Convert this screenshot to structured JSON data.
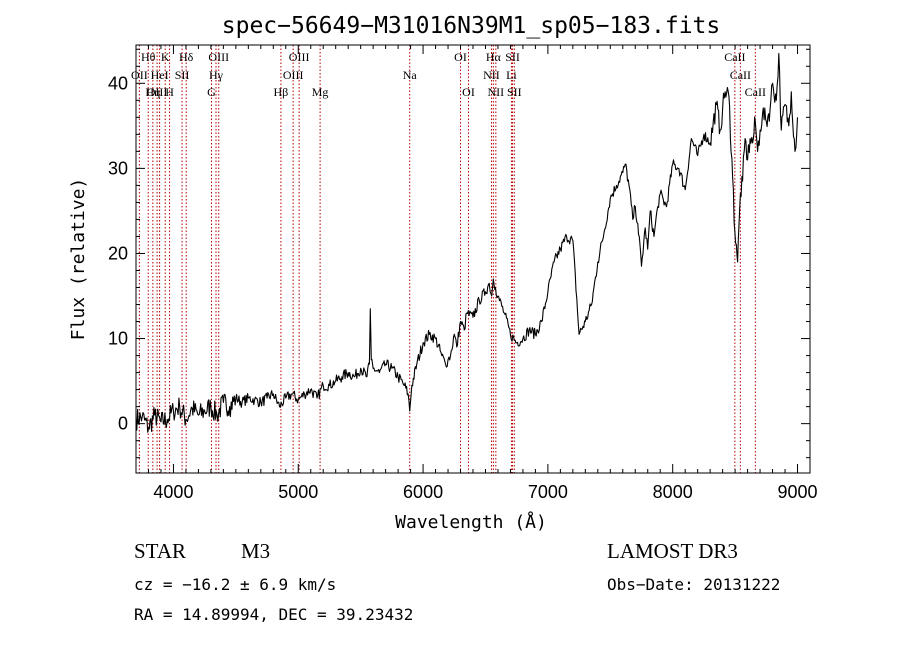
{
  "chart_data": {
    "type": "line",
    "title": "spec−56649−M31016N39M1_sp05−183.fits",
    "xlabel": "Wavelength (Å)",
    "ylabel": "Flux (relative)",
    "xlim": [
      3700,
      9100
    ],
    "ylim": [
      -5.8,
      44.5
    ],
    "xticks": [
      4000,
      5000,
      6000,
      7000,
      8000,
      9000
    ],
    "yticks": [
      0,
      10,
      20,
      30,
      40
    ],
    "line_color": "#000000",
    "marker_color": "#b40000",
    "spectrum": {
      "x": [
        3700,
        3750,
        3800,
        3850,
        3900,
        3950,
        4000,
        4050,
        4100,
        4150,
        4200,
        4250,
        4300,
        4350,
        4400,
        4450,
        4500,
        4550,
        4600,
        4650,
        4700,
        4750,
        4800,
        4850,
        4900,
        4950,
        5000,
        5050,
        5100,
        5150,
        5200,
        5250,
        5300,
        5350,
        5400,
        5450,
        5500,
        5550,
        5570,
        5577,
        5585,
        5600,
        5650,
        5700,
        5750,
        5800,
        5850,
        5880,
        5893,
        5910,
        5950,
        6000,
        6050,
        6100,
        6150,
        6180,
        6200,
        6220,
        6250,
        6270,
        6300,
        6330,
        6350,
        6400,
        6450,
        6500,
        6530,
        6550,
        6563,
        6580,
        6600,
        6650,
        6700,
        6750,
        6800,
        6850,
        6900,
        6950,
        7000,
        7050,
        7100,
        7150,
        7200,
        7250,
        7300,
        7350,
        7400,
        7450,
        7500,
        7550,
        7600,
        7620,
        7650,
        7680,
        7700,
        7720,
        7750,
        7780,
        7800,
        7820,
        7850,
        7880,
        7900,
        7950,
        8000,
        8050,
        8100,
        8150,
        8200,
        8250,
        8300,
        8350,
        8380,
        8400,
        8420,
        8450,
        8480,
        8498,
        8510,
        8520,
        8542,
        8560,
        8580,
        8600,
        8620,
        8640,
        8662,
        8680,
        8700,
        8720,
        8750,
        8780,
        8800,
        8830,
        8850,
        8870,
        8900,
        8930,
        8950,
        8980,
        9000
      ],
      "y": [
        0.5,
        0.8,
        -0.5,
        1.0,
        0.2,
        0.5,
        1.5,
        2.0,
        0.5,
        1.8,
        1.0,
        1.5,
        2.0,
        1.0,
        2.5,
        2.0,
        3.0,
        2.5,
        3.0,
        2.8,
        2.5,
        3.0,
        3.5,
        2.0,
        3.0,
        3.5,
        2.8,
        3.5,
        4.0,
        3.0,
        4.5,
        4.5,
        5.0,
        5.5,
        6.0,
        5.5,
        6.5,
        5.5,
        7.0,
        13.5,
        7.5,
        6.5,
        6.0,
        7.0,
        6.5,
        5.5,
        4.5,
        3.5,
        1.5,
        4.5,
        7.0,
        9.5,
        10.5,
        10.0,
        8.0,
        7.0,
        7.5,
        8.0,
        10.5,
        9.0,
        12.0,
        11.0,
        13.0,
        12.5,
        14.5,
        15.5,
        16.5,
        15.0,
        17.0,
        16.0,
        15.0,
        13.0,
        10.5,
        9.5,
        10.0,
        11.0,
        10.5,
        12.0,
        15.5,
        19.0,
        20.5,
        22.0,
        21.5,
        10.5,
        12.0,
        14.0,
        19.0,
        22.5,
        26.5,
        28.0,
        29.5,
        30.5,
        28.0,
        24.0,
        25.5,
        23.5,
        18.5,
        23.0,
        20.5,
        25.0,
        22.0,
        25.5,
        27.0,
        25.5,
        30.5,
        30.0,
        27.5,
        33.5,
        31.5,
        34.0,
        33.0,
        37.5,
        34.5,
        37.0,
        39.0,
        38.5,
        29.0,
        22.5,
        21.0,
        19.0,
        27.0,
        28.5,
        33.5,
        31.0,
        33.5,
        33.0,
        35.5,
        32.0,
        34.5,
        36.5,
        35.5,
        37.0,
        40.0,
        38.0,
        43.5,
        34.5,
        37.5,
        35.0,
        39.0,
        32.0,
        36.0
      ]
    },
    "lines": [
      {
        "label": "Hθ",
        "x": 3798,
        "row": 1
      },
      {
        "label": "OII",
        "x": 3727,
        "row": 2
      },
      {
        "label": "OIII",
        "x": 3869,
        "row": 3
      },
      {
        "label": "Hη",
        "x": 3835,
        "row": 3
      },
      {
        "label": "HeI",
        "x": 3889,
        "row": 2
      },
      {
        "label": "K",
        "x": 3934,
        "row": 1
      },
      {
        "label": "H",
        "x": 3969,
        "row": 3
      },
      {
        "label": "SII",
        "x": 4069,
        "row": 2
      },
      {
        "label": "Hδ",
        "x": 4102,
        "row": 1
      },
      {
        "label": "OIII",
        "x": 4363,
        "row": 1
      },
      {
        "label": "Hγ",
        "x": 4341,
        "row": 2
      },
      {
        "label": "G",
        "x": 4305,
        "row": 3
      },
      {
        "label": "Hβ",
        "x": 4861,
        "row": 3
      },
      {
        "label": "OIII",
        "x": 4959,
        "row": 2
      },
      {
        "label": "OIII",
        "x": 5007,
        "row": 1
      },
      {
        "label": "Mg",
        "x": 5175,
        "row": 3
      },
      {
        "label": "Na",
        "x": 5893,
        "row": 2
      },
      {
        "label": "OI",
        "x": 6300,
        "row": 1
      },
      {
        "label": "OI",
        "x": 6364,
        "row": 3
      },
      {
        "label": "Hα",
        "x": 6563,
        "row": 1
      },
      {
        "label": "NII",
        "x": 6548,
        "row": 2
      },
      {
        "label": "NII",
        "x": 6583,
        "row": 3
      },
      {
        "label": "SII",
        "x": 6717,
        "row": 1
      },
      {
        "label": "Li",
        "x": 6708,
        "row": 2
      },
      {
        "label": "SII",
        "x": 6731,
        "row": 3
      },
      {
        "label": "CaII",
        "x": 8498,
        "row": 1
      },
      {
        "label": "CaII",
        "x": 8542,
        "row": 2
      },
      {
        "label": "CaII",
        "x": 8662,
        "row": 3
      }
    ]
  },
  "info": {
    "object_class": "STAR",
    "subclass": "M3",
    "survey": "LAMOST DR3",
    "cz": "cz = −16.2 ± 6.9 km/s",
    "obs_date": "Obs−Date: 20131222",
    "coords": "RA =  14.89994, DEC =  39.23432"
  }
}
